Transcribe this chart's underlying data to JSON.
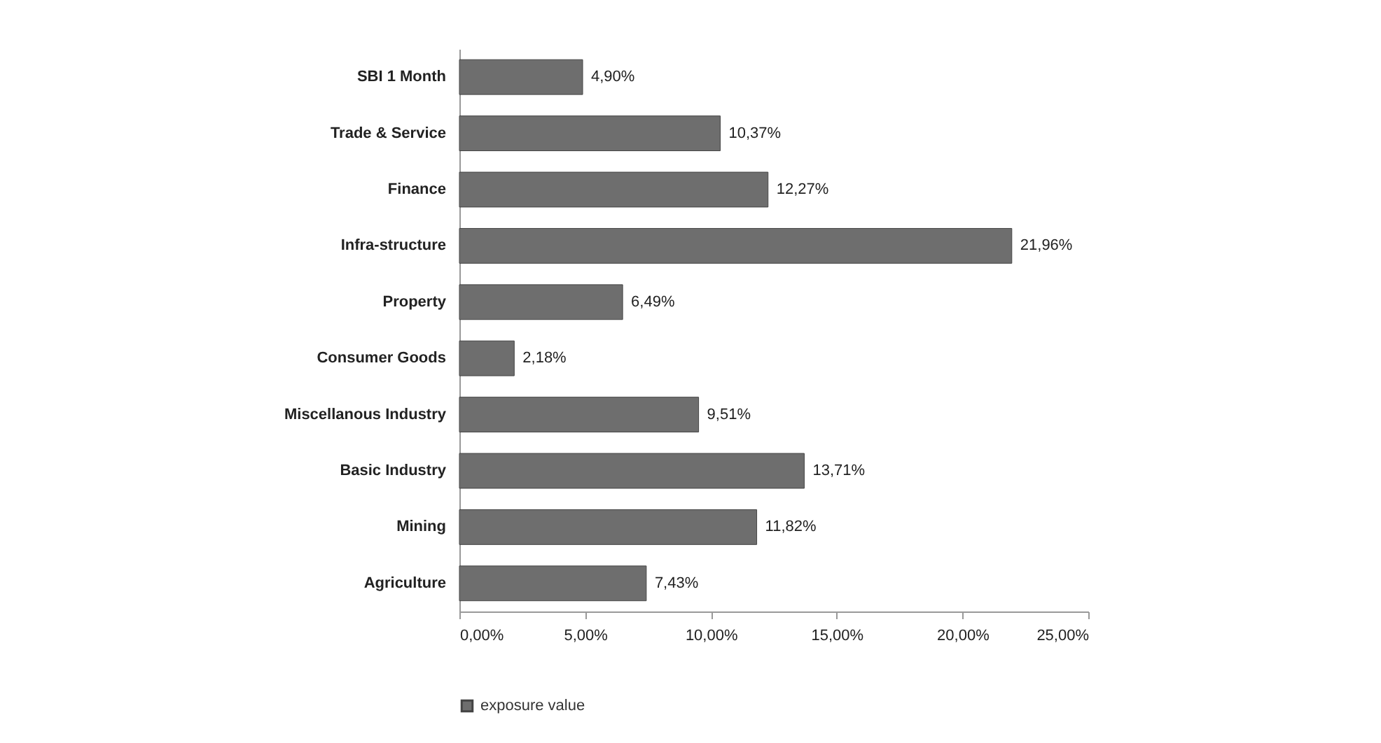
{
  "chart_data": {
    "type": "bar",
    "orientation": "horizontal",
    "categories": [
      "SBI 1 Month",
      "Trade & Service",
      "Finance",
      "Infra-structure",
      "Property",
      "Consumer Goods",
      "Miscellanous  Industry",
      "Basic Industry",
      "Mining",
      "Agriculture"
    ],
    "series": [
      {
        "name": "exposure value",
        "color": "#6e6e6e",
        "values": [
          4.9,
          10.37,
          12.27,
          21.96,
          6.49,
          2.18,
          9.51,
          13.71,
          11.82,
          7.43
        ],
        "value_labels": [
          "4,90%",
          "10,37%",
          "12,27%",
          "21,96%",
          "6,49%",
          "2,18%",
          "9,51%",
          "13,71%",
          "11,82%",
          "7,43%"
        ]
      }
    ],
    "xlim": [
      0,
      25
    ],
    "xticks": [
      {
        "value": 0,
        "label": "0,00%"
      },
      {
        "value": 5,
        "label": "5,00%"
      },
      {
        "value": 10,
        "label": "10,00%"
      },
      {
        "value": 15,
        "label": "15,00%"
      },
      {
        "value": 20,
        "label": "20,00%"
      },
      {
        "value": 25,
        "label": "25,00%"
      }
    ],
    "grid": false,
    "legend": "bottom"
  }
}
